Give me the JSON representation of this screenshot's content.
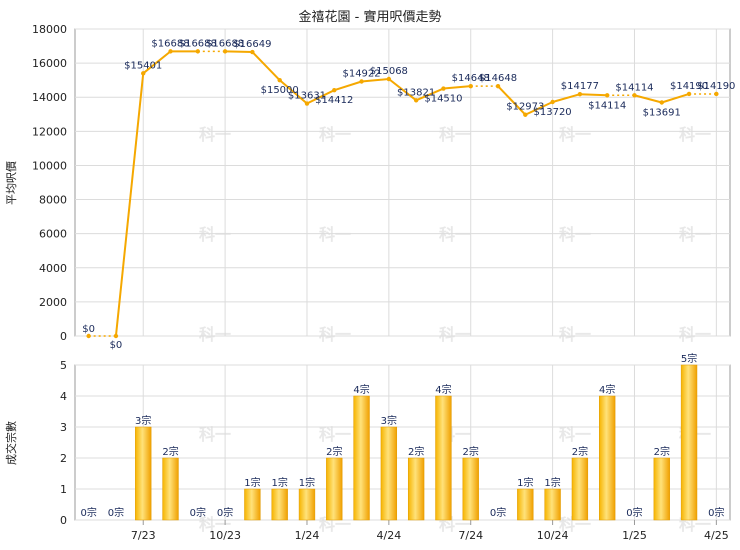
{
  "chart_data": [
    {
      "type": "line",
      "title": "金禧花園 - 實用呎價走勢",
      "ylabel": "平均呎價",
      "ylim": [
        0,
        18000
      ],
      "yticks": [
        0,
        2000,
        4000,
        6000,
        8000,
        10000,
        12000,
        14000,
        16000,
        18000
      ],
      "grid": true,
      "color": "#f5a800",
      "points": [
        {
          "i": 0,
          "value": 0,
          "label": "$0",
          "dotted_to_next": true
        },
        {
          "i": 1,
          "value": 0,
          "label": "$0"
        },
        {
          "i": 2,
          "value": 15401,
          "label": "$15401"
        },
        {
          "i": 3,
          "value": 16688,
          "label": "$16688"
        },
        {
          "i": 4,
          "value": 16688,
          "label": "$16688",
          "dotted_to_next": true
        },
        {
          "i": 5,
          "value": 16688,
          "label": "$16688"
        },
        {
          "i": 6,
          "value": 16649,
          "label": "$16649"
        },
        {
          "i": 7,
          "value": 15000,
          "label": "$15000"
        },
        {
          "i": 8,
          "value": 13631,
          "label": "$13631"
        },
        {
          "i": 9,
          "value": 14412,
          "label": "$14412"
        },
        {
          "i": 10,
          "value": 14922,
          "label": "$14922"
        },
        {
          "i": 11,
          "value": 15068,
          "label": "$15068"
        },
        {
          "i": 12,
          "value": 13821,
          "label": "$13821"
        },
        {
          "i": 13,
          "value": 14510,
          "label": "$14510"
        },
        {
          "i": 14,
          "value": 14648,
          "label": "$14648",
          "dotted_to_next": true
        },
        {
          "i": 15,
          "value": 14648,
          "label": "$14648"
        },
        {
          "i": 16,
          "value": 12973,
          "label": "$12973"
        },
        {
          "i": 17,
          "value": 13720,
          "label": "$13720"
        },
        {
          "i": 18,
          "value": 14177,
          "label": "$14177"
        },
        {
          "i": 19,
          "value": 14114,
          "label": "$14114",
          "dotted_to_next": true
        },
        {
          "i": 20,
          "value": 14114,
          "label": "$14114"
        },
        {
          "i": 21,
          "value": 13691,
          "label": "$13691"
        },
        {
          "i": 22,
          "value": 14190,
          "label": "$14190",
          "dotted_to_next": true
        },
        {
          "i": 23,
          "value": 14190,
          "label": "$14190"
        }
      ]
    },
    {
      "type": "bar",
      "ylabel": "成交宗數",
      "ylim": [
        0,
        5
      ],
      "yticks": [
        0,
        1,
        2,
        3,
        4,
        5
      ],
      "grid": true,
      "color": "#f5a800",
      "values": [
        0,
        0,
        3,
        2,
        0,
        0,
        1,
        1,
        1,
        2,
        4,
        3,
        2,
        4,
        2,
        0,
        1,
        1,
        2,
        4,
        0,
        2,
        5,
        0
      ],
      "value_suffix": "宗",
      "xtick_labels": [
        {
          "i": 2,
          "label": "7/23"
        },
        {
          "i": 5,
          "label": "10/23"
        },
        {
          "i": 8,
          "label": "1/24"
        },
        {
          "i": 11,
          "label": "4/24"
        },
        {
          "i": 14,
          "label": "7/24"
        },
        {
          "i": 17,
          "label": "10/24"
        },
        {
          "i": 20,
          "label": "1/25"
        },
        {
          "i": 23,
          "label": "4/25"
        }
      ]
    }
  ],
  "watermark": "科一"
}
